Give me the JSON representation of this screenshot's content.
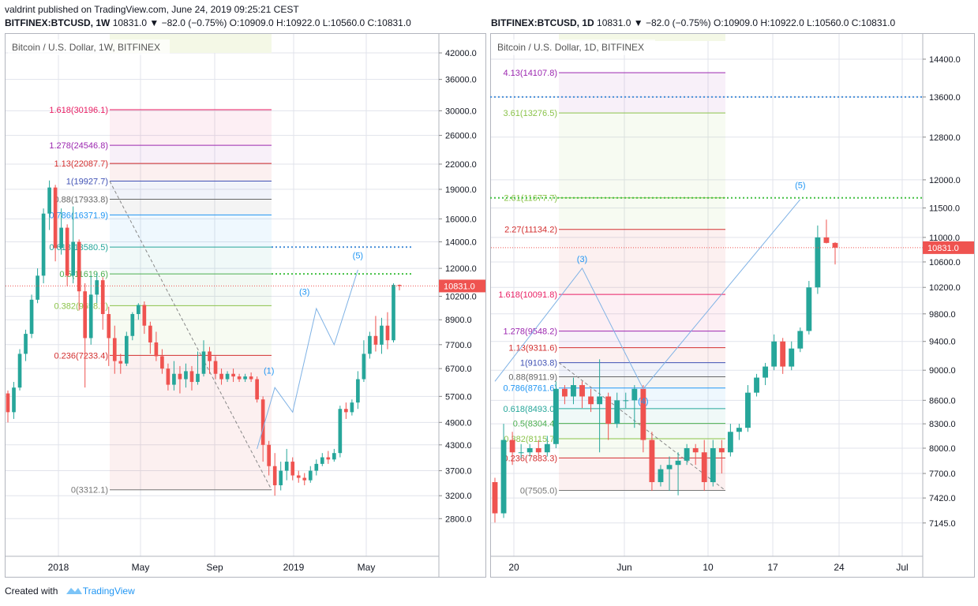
{
  "header": {
    "published_line": "valdrint published on TradingView.com, June 24, 2019 09:25:21 CEST",
    "left_symbol": "BITFINEX:BTCUSD, 1W",
    "left_ohlc": "10831.0 ▼ −82.0 (−0.75%) O:10909.0 H:10922.0 L:10560.0 C:10831.0",
    "right_symbol": "BITFINEX:BTCUSD, 1D",
    "right_ohlc": "10831.0 ▼ −82.0 (−0.75%) O:10909.0 H:10922.0 L:10560.0 C:10831.0"
  },
  "footer": {
    "created_with": "Created with",
    "brand": "TradingView"
  },
  "colors": {
    "up": "#26a69a",
    "down": "#ef5350",
    "grid": "#e1e3eb",
    "price_tag": "#ef5350"
  },
  "chart_data": [
    {
      "type": "candlestick",
      "title": "Bitcoin / U.S. Dollar, 1W, BITFINEX",
      "y_scale": "log",
      "ylim": [
        2500,
        45000
      ],
      "y_ticks": [
        2800,
        3200,
        3700,
        4300,
        4900,
        5700,
        6700,
        7700,
        8900,
        10200,
        12000,
        14000,
        16000,
        19000,
        22000,
        26000,
        30000,
        36000,
        42000
      ],
      "x_labels": [
        "2018",
        "May",
        "Sep",
        "2019",
        "May"
      ],
      "last_price": 10831.0,
      "last_price_label": "10831.0",
      "fib_levels": [
        {
          "label": "1.618(30196.1)",
          "value": 30196.1,
          "color": "#e91e63"
        },
        {
          "label": "1.278(24546.8)",
          "value": 24546.8,
          "color": "#9c27b0"
        },
        {
          "label": "1.13(22087.7)",
          "value": 22087.7,
          "color": "#d32f2f"
        },
        {
          "label": "1(19927.7)",
          "value": 19927.7,
          "color": "#3f51b5"
        },
        {
          "label": "0.88(17933.8)",
          "value": 17933.8,
          "color": "#666666"
        },
        {
          "label": "0.786(16371.9)",
          "value": 16371.9,
          "color": "#2196f3"
        },
        {
          "label": "0.618(13580.5)",
          "value": 13580.5,
          "color": "#26a69a"
        },
        {
          "label": "0.5(11619.6)",
          "value": 11619.6,
          "color": "#4caf50"
        },
        {
          "label": "0.382(9658.7)",
          "value": 9658.7,
          "color": "#8bc34a"
        },
        {
          "label": "0.236(7233.4)",
          "value": 7233.4,
          "color": "#d32f2f"
        },
        {
          "label": "0(3312.1)",
          "value": 3312.1,
          "color": "#777777"
        }
      ],
      "waves": [
        "(1)",
        "(3)",
        "(5)"
      ],
      "candles": [
        [
          5800,
          5200,
          5900,
          4900
        ],
        [
          5200,
          6000,
          6200,
          5000
        ],
        [
          6000,
          7300,
          7500,
          5900
        ],
        [
          7300,
          8200,
          8400,
          7000
        ],
        [
          8200,
          10000,
          10300,
          8000
        ],
        [
          10000,
          11500,
          12000,
          9800
        ],
        [
          11500,
          16500,
          17000,
          11000
        ],
        [
          16500,
          19200,
          20000,
          15000
        ],
        [
          19200,
          13500,
          19500,
          12500
        ],
        [
          13500,
          15200,
          17000,
          13000
        ],
        [
          15200,
          11500,
          15500,
          10800
        ],
        [
          11500,
          14000,
          17200,
          11000
        ],
        [
          14000,
          10500,
          14200,
          9400
        ],
        [
          10500,
          8000,
          11000,
          6000
        ],
        [
          8000,
          10300,
          11500,
          7700
        ],
        [
          10300,
          11200,
          11700,
          9800
        ],
        [
          11200,
          9200,
          11400,
          8400
        ],
        [
          9200,
          8000,
          9600,
          6800
        ],
        [
          8000,
          7000,
          8600,
          6500
        ],
        [
          7000,
          6900,
          7300,
          6500
        ],
        [
          6900,
          8100,
          8300,
          6800
        ],
        [
          8100,
          9200,
          9300,
          7900
        ],
        [
          9200,
          9700,
          9800,
          8900
        ],
        [
          9700,
          8600,
          9900,
          8200
        ],
        [
          8600,
          7800,
          8800,
          7300
        ],
        [
          7800,
          7200,
          8300,
          7000
        ],
        [
          7200,
          6700,
          7500,
          6500
        ],
        [
          6700,
          6100,
          6900,
          5900
        ],
        [
          6100,
          6500,
          7000,
          5900
        ],
        [
          6500,
          6300,
          6800,
          5800
        ],
        [
          6300,
          6600,
          6900,
          6000
        ],
        [
          6600,
          6200,
          6800,
          5900
        ],
        [
          6200,
          6500,
          7400,
          6100
        ],
        [
          6500,
          7400,
          7900,
          6400
        ],
        [
          7400,
          7000,
          7600,
          6500
        ],
        [
          7000,
          6500,
          7200,
          6300
        ],
        [
          6500,
          6300,
          6700,
          6100
        ],
        [
          6300,
          6500,
          6600,
          6200
        ],
        [
          6500,
          6400,
          6700,
          6200
        ],
        [
          6400,
          6300,
          6500,
          6200
        ],
        [
          6300,
          6400,
          6500,
          6200
        ],
        [
          6400,
          6300,
          6550,
          6200
        ],
        [
          6300,
          5600,
          6400,
          5500
        ],
        [
          5600,
          4300,
          5700,
          3900
        ],
        [
          4300,
          3800,
          4400,
          3600
        ],
        [
          3800,
          3400,
          4100,
          3200
        ],
        [
          3400,
          3700,
          3900,
          3300
        ],
        [
          3700,
          3900,
          4200,
          3500
        ],
        [
          3900,
          3600,
          4000,
          3500
        ],
        [
          3600,
          3550,
          3700,
          3450
        ],
        [
          3550,
          3500,
          3650,
          3400
        ],
        [
          3500,
          3700,
          3800,
          3450
        ],
        [
          3700,
          3850,
          3950,
          3600
        ],
        [
          3850,
          4000,
          4100,
          3800
        ],
        [
          4000,
          3950,
          4150,
          3850
        ],
        [
          3950,
          4100,
          4200,
          3900
        ],
        [
          4100,
          5300,
          5400,
          4000
        ],
        [
          5300,
          5200,
          5500,
          5000
        ],
        [
          5200,
          5500,
          5600,
          5100
        ],
        [
          5500,
          6300,
          6600,
          5300
        ],
        [
          6300,
          7300,
          7900,
          6200
        ],
        [
          7300,
          8100,
          8300,
          7100
        ],
        [
          8100,
          7700,
          9100,
          7400
        ],
        [
          7700,
          8600,
          9000,
          7300
        ],
        [
          8600,
          7900,
          9300,
          7500
        ],
        [
          7900,
          10900,
          11000,
          7800
        ],
        [
          10900,
          10831,
          10922,
          10560
        ]
      ]
    },
    {
      "type": "candlestick",
      "title": "Bitcoin / U.S. Dollar, 1D, BITFINEX",
      "y_scale": "log",
      "ylim": [
        6950,
        14800
      ],
      "y_ticks": [
        7145,
        7420,
        7700,
        8000,
        8300,
        8600,
        9000,
        9400,
        9800,
        10200,
        10600,
        11000,
        11500,
        12000,
        12800,
        13600,
        14400
      ],
      "x_labels": [
        "20",
        "Jun",
        "10",
        "17",
        "24",
        "Jul"
      ],
      "last_price": 10831.0,
      "last_price_label": "10831.0",
      "fib_levels": [
        {
          "label": "4.13(14107.8)",
          "value": 14107.8,
          "color": "#9c27b0"
        },
        {
          "label": "3.61(13276.5)",
          "value": 13276.5,
          "color": "#8bc34a"
        },
        {
          "label": "2.61(11677.7)",
          "value": 11677.7,
          "color": "#8bc34a"
        },
        {
          "label": "2.27(11134.2)",
          "value": 11134.2,
          "color": "#d32f2f"
        },
        {
          "label": "1.618(10091.8)",
          "value": 10091.8,
          "color": "#e91e63"
        },
        {
          "label": "1.278(9548.2)",
          "value": 9548.2,
          "color": "#9c27b0"
        },
        {
          "label": "1.13(9311.6)",
          "value": 9311.6,
          "color": "#d32f2f"
        },
        {
          "label": "1(9103.8)",
          "value": 9103.8,
          "color": "#3f51b5"
        },
        {
          "label": "0.88(8911.9)",
          "value": 8911.9,
          "color": "#666666"
        },
        {
          "label": "0.786(8761.6)",
          "value": 8761.6,
          "color": "#2196f3"
        },
        {
          "label": "0.618(8493.0)",
          "value": 8493.0,
          "color": "#26a69a"
        },
        {
          "label": "0.5(8304.4)",
          "value": 8304.4,
          "color": "#4caf50"
        },
        {
          "label": "0.382(8115.7)",
          "value": 8115.7,
          "color": "#8bc34a"
        },
        {
          "label": "0.236(7883.3)",
          "value": 7883.3,
          "color": "#d32f2f"
        },
        {
          "label": "0(7505.0)",
          "value": 7505.0,
          "color": "#777777"
        }
      ],
      "waves": [
        "(3)",
        "(4)",
        "(5)"
      ],
      "candles": [
        [
          7600,
          7250,
          7650,
          7150
        ],
        [
          7250,
          8100,
          8300,
          7200
        ],
        [
          8100,
          7950,
          8200,
          7800
        ],
        [
          7950,
          7950,
          8050,
          7880
        ],
        [
          7950,
          8000,
          8050,
          7900
        ],
        [
          8000,
          7950,
          8100,
          7900
        ],
        [
          7950,
          8050,
          8150,
          7900
        ],
        [
          8050,
          8750,
          8850,
          8000
        ],
        [
          8750,
          8650,
          8800,
          8550
        ],
        [
          8650,
          8800,
          8900,
          8550
        ],
        [
          8800,
          8650,
          8850,
          8500
        ],
        [
          8650,
          8550,
          8750,
          8450
        ],
        [
          8550,
          8650,
          9150,
          7950
        ],
        [
          8650,
          8300,
          8700,
          8100
        ],
        [
          8300,
          8600,
          8700,
          8250
        ],
        [
          8600,
          8600,
          8700,
          8500
        ],
        [
          8600,
          8750,
          8800,
          8250
        ],
        [
          8750,
          8100,
          8800,
          7950
        ],
        [
          8100,
          7600,
          8200,
          7500
        ],
        [
          7600,
          7750,
          7800,
          7550
        ],
        [
          7750,
          7800,
          7900,
          7500
        ],
        [
          7800,
          7850,
          7950,
          7450
        ],
        [
          7850,
          8000,
          8050,
          7800
        ],
        [
          8000,
          7950,
          8050,
          7800
        ],
        [
          7950,
          7600,
          8100,
          7500
        ],
        [
          7600,
          8000,
          8100,
          7550
        ],
        [
          8000,
          7950,
          8100,
          7700
        ],
        [
          7950,
          8200,
          8300,
          7900
        ],
        [
          8200,
          8250,
          8300,
          8100
        ],
        [
          8250,
          8700,
          8800,
          8200
        ],
        [
          8700,
          8900,
          8950,
          8650
        ],
        [
          8900,
          9050,
          9100,
          8800
        ],
        [
          9050,
          9400,
          9500,
          9000
        ],
        [
          9400,
          9050,
          9450,
          8950
        ],
        [
          9050,
          9300,
          9400,
          9000
        ],
        [
          9300,
          9550,
          9600,
          9250
        ],
        [
          9550,
          10200,
          10300,
          9500
        ],
        [
          10200,
          11000,
          11200,
          10100
        ],
        [
          11000,
          10909,
          11300,
          10900
        ],
        [
          10909,
          10831,
          10922,
          10560
        ]
      ]
    }
  ]
}
